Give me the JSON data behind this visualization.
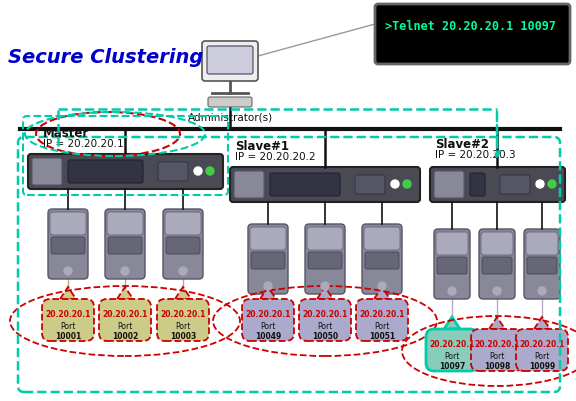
{
  "title": "Secure Clustering",
  "terminal_text": ">Telnet 20.20.20.1 10097",
  "admin_label": "Administrator(s)",
  "master_label": "Master",
  "master_ip": "IP = 20.20.20.1",
  "slave1_label": "Slave#1",
  "slave1_ip": "IP = 20.20.20.2",
  "slave2_label": "Slave#2",
  "slave2_ip": "IP = 20.20.20.3",
  "master_ports": [
    {
      "ip": "20.20.20.1",
      "port": "Port",
      "num": "10001"
    },
    {
      "ip": "20.20.20.1",
      "port": "Port",
      "num": "10002"
    },
    {
      "ip": "20.20.20.1",
      "port": "Port",
      "num": "10003"
    }
  ],
  "slave1_ports": [
    {
      "ip": "20.20.20.1",
      "port": "Port",
      "num": "10049"
    },
    {
      "ip": "20.20.20.1",
      "port": "Port",
      "num": "10050"
    },
    {
      "ip": "20.20.20.1",
      "port": "Port",
      "num": "10051"
    }
  ],
  "slave2_ports": [
    {
      "ip": "20.20.20.1",
      "port": "Port",
      "num": "10097"
    },
    {
      "ip": "20.20.20.1",
      "port": "Port",
      "num": "10098"
    },
    {
      "ip": "20.20.20.1",
      "port": "Port",
      "num": "10099"
    }
  ],
  "bg_color": "#ffffff",
  "terminal_bg": "#000000",
  "terminal_fg": "#00ff99",
  "terminal_border": "#666666",
  "teal": "#00ccaa",
  "red_dash": "#cc0000",
  "title_color": "#0000cc",
  "switch_body": "#4a4a55",
  "switch_panel": "#3a3a44",
  "server_body": "#6a6a7a",
  "port_box_master": "#cccc88",
  "port_box_slave1": "#aaaacc",
  "port_box_slave2": "#aaaacc",
  "port_box_highlight": "#88ccbb"
}
